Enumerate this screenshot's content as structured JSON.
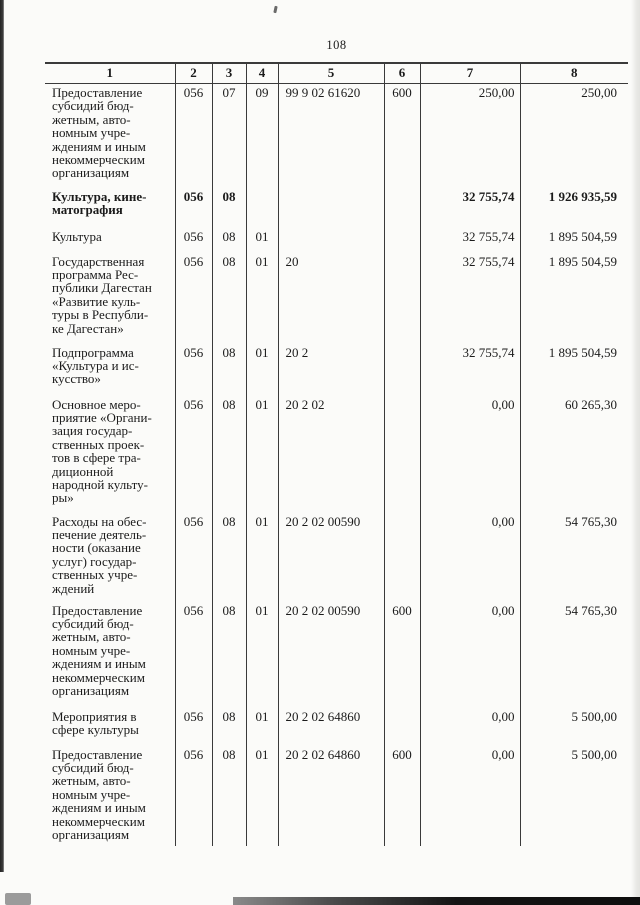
{
  "page": {
    "number": "108"
  },
  "colors": {
    "text": "#1b1b1b",
    "table_rule": "#3a3a3a",
    "paper_background": "#fbfbf9",
    "scan_edge": "#2e2e2e"
  },
  "table": {
    "headers": [
      "1",
      "2",
      "3",
      "4",
      "5",
      "6",
      "7",
      "8"
    ],
    "rows": [
      {
        "bold": false,
        "cells": [
          "Предоставление\nсубсидий бюд-\nжетным, авто-\nномным учре-\nждениям и иным\nнекоммерческим\nорганизациям",
          "056",
          "07",
          "09",
          "99 9 02 61620",
          "600",
          "250,00",
          "250,00"
        ]
      },
      {
        "bold": true,
        "cells": [
          "Культура, кине-\nматография",
          "056",
          "08",
          "",
          "",
          "",
          "32 755,74",
          "1 926 935,59"
        ]
      },
      {
        "bold": false,
        "cells": [
          "Культура",
          "056",
          "08",
          "01",
          "",
          "",
          "32 755,74",
          "1 895 504,59"
        ]
      },
      {
        "bold": false,
        "cells": [
          "Государственная\nпрограмма Рес-\nпублики Дагестан\n«Развитие куль-\nтуры в Республи-\nке Дагестан»",
          "056",
          "08",
          "01",
          "20",
          "",
          "32 755,74",
          "1 895 504,59"
        ]
      },
      {
        "bold": false,
        "cells": [
          "Подпрограмма\n«Культура и ис-\nкусство»",
          "056",
          "08",
          "01",
          "20 2",
          "",
          "32 755,74",
          "1 895 504,59"
        ]
      },
      {
        "bold": false,
        "cells": [
          "Основное меро-\nприятие «Органи-\nзация государ-\nственных проек-\nтов в сфере тра-\nдиционной\nнародной культу-\nры»",
          "056",
          "08",
          "01",
          "20 2 02",
          "",
          "0,00",
          "60 265,30"
        ]
      },
      {
        "bold": false,
        "cells": [
          "Расходы на обес-\nпечение деятель-\nности (оказание\nуслуг) государ-\nственных учре-\nждений",
          "056",
          "08",
          "01",
          "20 2 02 00590",
          "",
          "0,00",
          "54 765,30"
        ]
      },
      {
        "bold": false,
        "cells": [
          "Предоставление\nсубсидий бюд-\nжетным, авто-\nномным учре-\nждениям и иным\nнекоммерческим\nорганизациям",
          "056",
          "08",
          "01",
          "20 2 02 00590",
          "600",
          "0,00",
          "54 765,30"
        ]
      },
      {
        "bold": false,
        "cells": [
          "Мероприятия в\nсфере культуры",
          "056",
          "08",
          "01",
          "20 2 02 64860",
          "",
          "0,00",
          "5 500,00"
        ]
      },
      {
        "bold": false,
        "cells": [
          "Предоставление\nсубсидий бюд-\nжетным, авто-\nномным учре-\nждениям и иным\nнекоммерческим\nорганизациям",
          "056",
          "08",
          "01",
          "20 2 02 64860",
          "600",
          "0,00",
          "5 500,00"
        ]
      }
    ]
  }
}
